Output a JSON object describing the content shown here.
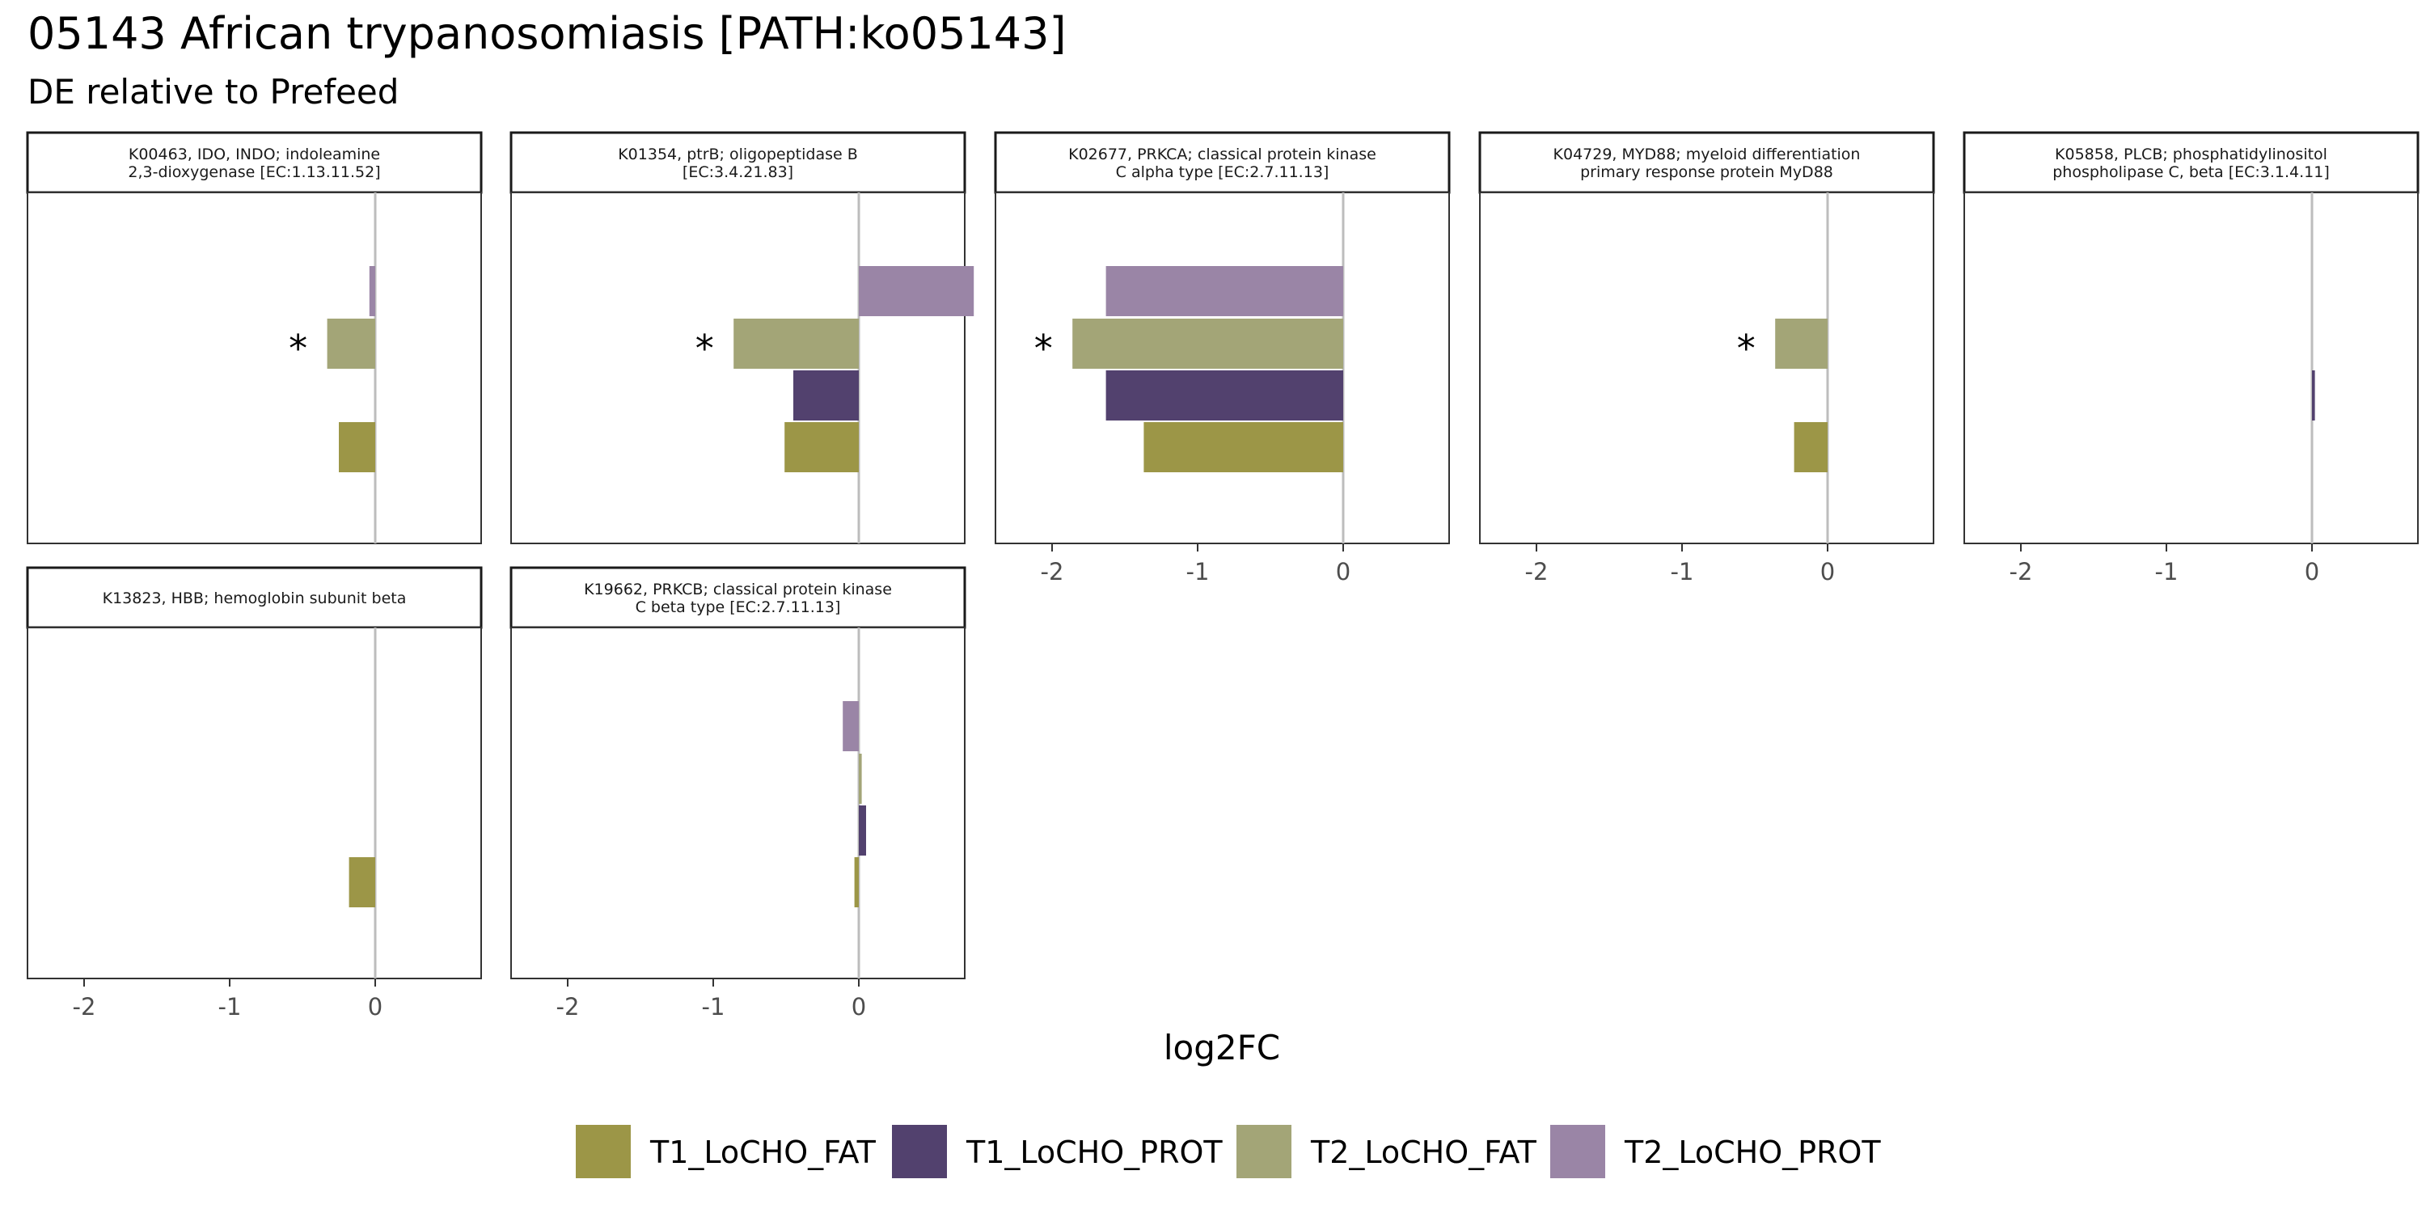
{
  "chart_data": {
    "type": "bar",
    "orientation": "horizontal",
    "title": "05143 African trypanosomiasis [PATH:ko05143]",
    "subtitle": "DE relative to Prefeed",
    "xlabel": "log2FC",
    "xlim": [
      -2.2,
      0.93
    ],
    "x_ticks": [
      -2,
      -1,
      0
    ],
    "x_tick_labels": [
      "-2",
      "-1",
      "0"
    ],
    "grid": false,
    "legend_position": "bottom",
    "groups": [
      "T1_LoCHO_FAT",
      "T1_LoCHO_PROT",
      "T2_LoCHO_FAT",
      "T2_LoCHO_PROT"
    ],
    "colors": {
      "T1_LoCHO_FAT": "#9c9647",
      "T1_LoCHO_PROT": "#52416e",
      "T2_LoCHO_FAT": "#a3a577",
      "T2_LoCHO_PROT": "#9a85a6"
    },
    "panels": [
      {
        "label_lines": [
          "K00463, IDO, INDO; indoleamine",
          "2,3-dioxygenase [EC:1.13.11.52]"
        ],
        "values": {
          "T1_LoCHO_FAT": -0.25,
          "T1_LoCHO_PROT": null,
          "T2_LoCHO_FAT": -0.33,
          "T2_LoCHO_PROT": -0.04
        },
        "significant": [
          "T2_LoCHO_FAT"
        ]
      },
      {
        "label_lines": [
          "K01354, ptrB; oligopeptidase B",
          "[EC:3.4.21.83]"
        ],
        "values": {
          "T1_LoCHO_FAT": -0.51,
          "T1_LoCHO_PROT": -0.45,
          "T2_LoCHO_FAT": -0.86,
          "T2_LoCHO_PROT": 0.79
        },
        "significant": [
          "T2_LoCHO_FAT"
        ]
      },
      {
        "label_lines": [
          "K02677, PRKCA; classical protein kinase",
          "C alpha type [EC:2.7.11.13]"
        ],
        "values": {
          "T1_LoCHO_FAT": -1.37,
          "T1_LoCHO_PROT": -1.63,
          "T2_LoCHO_FAT": -1.86,
          "T2_LoCHO_PROT": -1.63
        },
        "significant": [
          "T2_LoCHO_FAT"
        ]
      },
      {
        "label_lines": [
          "K04729, MYD88; myeloid differentiation",
          "primary response protein MyD88"
        ],
        "values": {
          "T1_LoCHO_FAT": -0.23,
          "T1_LoCHO_PROT": null,
          "T2_LoCHO_FAT": -0.36,
          "T2_LoCHO_PROT": null
        },
        "significant": [
          "T2_LoCHO_FAT"
        ]
      },
      {
        "label_lines": [
          "K05858, PLCB; phosphatidylinositol",
          "phospholipase C, beta [EC:3.1.4.11]"
        ],
        "values": {
          "T1_LoCHO_FAT": null,
          "T1_LoCHO_PROT": 0.02,
          "T2_LoCHO_FAT": null,
          "T2_LoCHO_PROT": null
        },
        "significant": []
      },
      {
        "label_lines": [
          "K13823, HBB; hemoglobin subunit beta"
        ],
        "values": {
          "T1_LoCHO_FAT": -0.18,
          "T1_LoCHO_PROT": null,
          "T2_LoCHO_FAT": null,
          "T2_LoCHO_PROT": null
        },
        "significant": []
      },
      {
        "label_lines": [
          "K19662, PRKCB; classical protein kinase",
          "C beta type [EC:2.7.11.13]"
        ],
        "values": {
          "T1_LoCHO_FAT": -0.03,
          "T1_LoCHO_PROT": 0.05,
          "T2_LoCHO_FAT": 0.02,
          "T2_LoCHO_PROT": -0.11
        },
        "significant": []
      }
    ],
    "significance_marker": "*"
  }
}
